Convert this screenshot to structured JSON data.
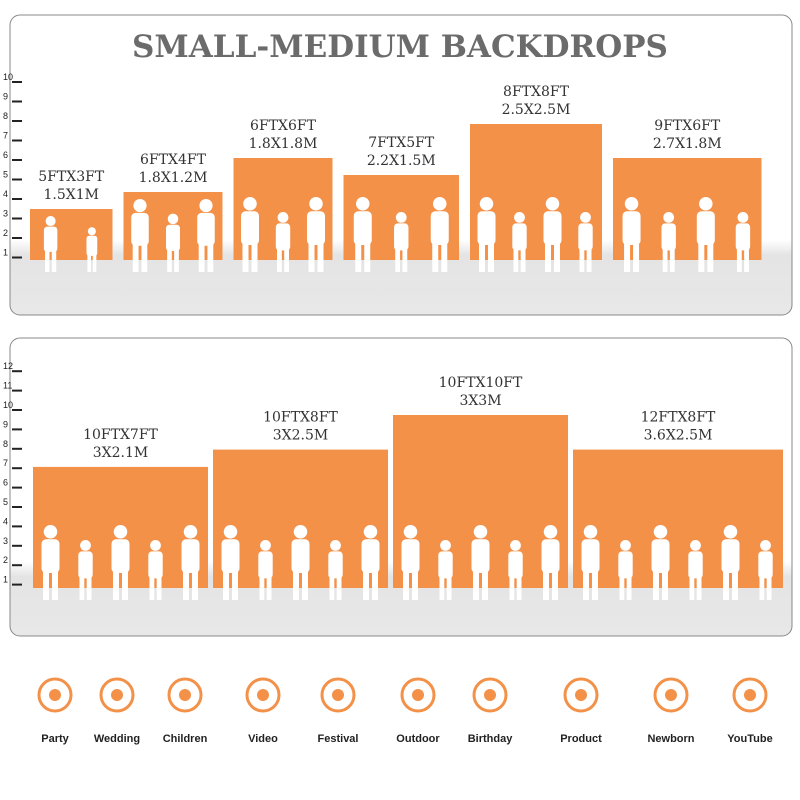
{
  "title": "SMALL-MEDIUM BACKDROPS",
  "panels": [
    {
      "ruler": [
        1,
        2,
        3,
        4,
        5,
        6,
        7,
        8,
        9,
        10
      ],
      "items": [
        {
          "label_ft": "5FTX3FT",
          "label_m": "1.5X1M",
          "width": 5,
          "height": 3
        },
        {
          "label_ft": "6FTX4FT",
          "label_m": "1.8X1.2M",
          "width": 6,
          "height": 4
        },
        {
          "label_ft": "6FTX6FT",
          "label_m": "1.8X1.8M",
          "width": 6,
          "height": 6
        },
        {
          "label_ft": "7FTX5FT",
          "label_m": "2.2X1.5M",
          "width": 7,
          "height": 5
        },
        {
          "label_ft": "8FTX8FT",
          "label_m": "2.5X2.5M",
          "width": 8,
          "height": 8
        },
        {
          "label_ft": "9FTX6FT",
          "label_m": "2.7X1.8M",
          "width": 9,
          "height": 6
        }
      ]
    },
    {
      "ruler": [
        1,
        2,
        3,
        4,
        5,
        6,
        7,
        8,
        9,
        10,
        11,
        12
      ],
      "items": [
        {
          "label_ft": "10FTX7FT",
          "label_m": "3X2.1M",
          "width": 10,
          "height": 7
        },
        {
          "label_ft": "10FTX8FT",
          "label_m": "3X2.5M",
          "width": 10,
          "height": 8
        },
        {
          "label_ft": "10FTX10FT",
          "label_m": "3X3M",
          "width": 10,
          "height": 10
        },
        {
          "label_ft": "12FTX8FT",
          "label_m": "3.6X2.5M",
          "width": 12,
          "height": 8
        }
      ]
    }
  ],
  "uses": [
    "Party",
    "Wedding",
    "Children",
    "Video",
    "Festival",
    "Outdoor",
    "Birthday",
    "Product",
    "Newborn",
    "YouTube"
  ]
}
